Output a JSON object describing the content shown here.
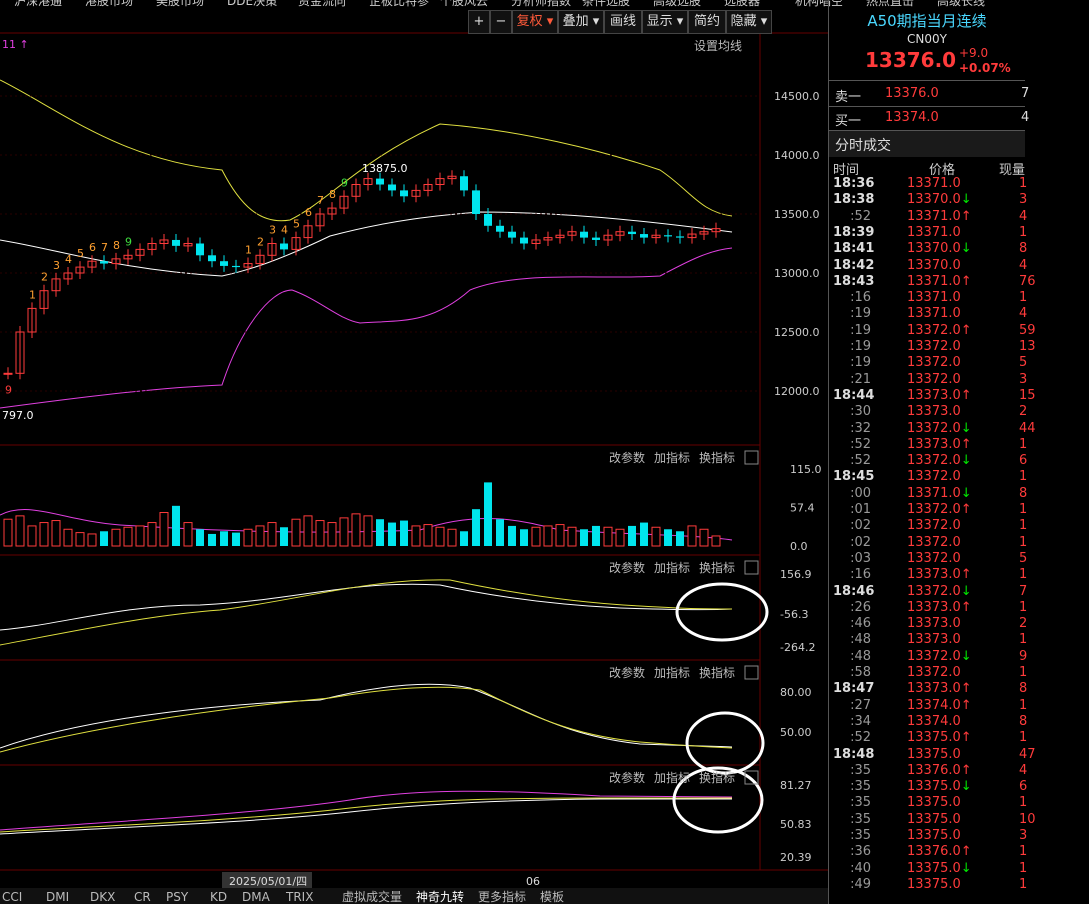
{
  "top_menu": [
    "沪深港通",
    "港股市场",
    "美股市场",
    "DDE决策",
    "资金流向",
    "企板比特参",
    "个股风云",
    "分析师指数",
    "条件选股",
    "高级选股",
    "选股器",
    "机构唱空",
    "热点直击",
    "高级长线"
  ],
  "toolbar": [
    "+",
    "−",
    "复权",
    "叠加",
    "画线",
    "显示",
    "简约",
    "隐藏"
  ],
  "chart": {
    "indicator_hint": "11 ↑",
    "ma_setting": "设置均线",
    "price_ticks": [
      {
        "value": 14500,
        "label": "14500.0"
      },
      {
        "value": 14000,
        "label": "14000.0"
      },
      {
        "value": 13500,
        "label": "13500.0"
      },
      {
        "value": 13000,
        "label": "13000.0"
      },
      {
        "value": 12500,
        "label": "12500.0"
      },
      {
        "value": 12000,
        "label": "12000.0"
      }
    ],
    "high_label": "13875.0",
    "low_label": "797.0",
    "close": [
      12150,
      12500,
      12700,
      12850,
      12950,
      13000,
      13050,
      13100,
      13080,
      13120,
      13150,
      13200,
      13250,
      13280,
      13230,
      13250,
      13150,
      13100,
      13060,
      13050,
      13080,
      13150,
      13250,
      13200,
      13300,
      13400,
      13500,
      13550,
      13650,
      13750,
      13800,
      13750,
      13700,
      13650,
      13700,
      13750,
      13800,
      13820,
      13700,
      13500,
      13400,
      13350,
      13300,
      13250,
      13280,
      13300,
      13320,
      13350,
      13300,
      13280,
      13320,
      13350,
      13330,
      13300,
      13320,
      13310,
      13300,
      13330,
      13350,
      13376
    ],
    "td_count": [
      "9",
      null,
      "1",
      "2",
      "3",
      "4",
      "5",
      "6",
      "7",
      "8",
      "9",
      null,
      null,
      null,
      null,
      null,
      null,
      null,
      null,
      null,
      "1",
      "2",
      "3",
      "4",
      "5",
      "6",
      "7",
      "8",
      "9",
      null,
      null,
      null,
      null,
      null,
      null,
      null,
      null,
      null,
      null,
      null,
      null,
      null,
      null,
      null,
      null,
      null,
      null,
      null,
      null,
      null,
      null,
      null,
      null,
      null,
      null,
      null,
      null,
      null,
      null,
      null
    ],
    "volume": {
      "ticks": [
        {
          "value": 115,
          "label": "115.0"
        },
        57.4,
        {
          "value": 0,
          "label": "0.0"
        }
      ],
      "values": [
        40,
        45,
        30,
        35,
        38,
        25,
        20,
        18,
        22,
        25,
        28,
        30,
        35,
        50,
        60,
        35,
        25,
        18,
        22,
        20,
        25,
        30,
        35,
        28,
        40,
        45,
        38,
        35,
        42,
        48,
        45,
        40,
        35,
        38,
        30,
        32,
        28,
        25,
        22,
        55,
        95,
        40,
        30,
        25,
        28,
        30,
        32,
        28,
        25,
        30,
        28,
        25,
        30,
        35,
        28,
        25,
        22,
        30,
        25,
        15
      ]
    },
    "panel_actions": [
      "改参数",
      "加指标",
      "换指标"
    ],
    "panels": [
      {
        "ticks": [
          156.9,
          -56.3,
          -264.2
        ]
      },
      {
        "ticks": [
          {
            "value": 80,
            "label": "80.00"
          },
          {
            "value": 50,
            "label": "50.00"
          }
        ]
      },
      {
        "ticks": [
          81.27,
          50.83,
          20.39
        ]
      }
    ],
    "date_label": "2025/05/01/四",
    "date_label2": "06",
    "tabs": [
      "CCI",
      "DMI",
      "DKX",
      "CR",
      "PSY",
      "KD",
      "DMA",
      "TRIX",
      "虚拟成交量",
      "神奇九转",
      "更多指标",
      "模板"
    ]
  },
  "quote": {
    "name": "A50期指当月连续",
    "code": "CN00Y",
    "price": "13376.0",
    "change": "+9.0",
    "pct": "+0.07%",
    "sell_label": "卖一",
    "sell_price": "13376.0",
    "sell_vol": "7",
    "buy_label": "买一",
    "buy_price": "13374.0",
    "buy_vol": "4",
    "trades_title": "分时成交",
    "col_time": "时间",
    "col_price": "价格",
    "col_vol": "现量"
  },
  "trades": [
    {
      "time": "18:36",
      "price": "13371.0",
      "dir": "",
      "vol": "1"
    },
    {
      "time": "18:38",
      "price": "13370.0",
      "dir": "down",
      "vol": "3"
    },
    {
      "time": ":52",
      "price": "13371.0",
      "dir": "up",
      "vol": "4"
    },
    {
      "time": "18:39",
      "price": "13371.0",
      "dir": "",
      "vol": "1"
    },
    {
      "time": "18:41",
      "price": "13370.0",
      "dir": "down",
      "vol": "8"
    },
    {
      "time": "18:42",
      "price": "13370.0",
      "dir": "",
      "vol": "4"
    },
    {
      "time": "18:43",
      "price": "13371.0",
      "dir": "up",
      "vol": "76"
    },
    {
      "time": ":16",
      "price": "13371.0",
      "dir": "",
      "vol": "1"
    },
    {
      "time": ":19",
      "price": "13371.0",
      "dir": "",
      "vol": "4"
    },
    {
      "time": ":19",
      "price": "13372.0",
      "dir": "up",
      "vol": "59"
    },
    {
      "time": ":19",
      "price": "13372.0",
      "dir": "",
      "vol": "13"
    },
    {
      "time": ":19",
      "price": "13372.0",
      "dir": "",
      "vol": "5"
    },
    {
      "time": ":21",
      "price": "13372.0",
      "dir": "",
      "vol": "3"
    },
    {
      "time": "18:44",
      "price": "13373.0",
      "dir": "up",
      "vol": "15"
    },
    {
      "time": ":30",
      "price": "13373.0",
      "dir": "",
      "vol": "2"
    },
    {
      "time": ":32",
      "price": "13372.0",
      "dir": "down",
      "vol": "44"
    },
    {
      "time": ":52",
      "price": "13373.0",
      "dir": "up",
      "vol": "1"
    },
    {
      "time": ":52",
      "price": "13372.0",
      "dir": "down",
      "vol": "6"
    },
    {
      "time": "18:45",
      "price": "13372.0",
      "dir": "",
      "vol": "1"
    },
    {
      "time": ":00",
      "price": "13371.0",
      "dir": "down",
      "vol": "8"
    },
    {
      "time": ":01",
      "price": "13372.0",
      "dir": "up",
      "vol": "1"
    },
    {
      "time": ":02",
      "price": "13372.0",
      "dir": "",
      "vol": "1"
    },
    {
      "time": ":02",
      "price": "13372.0",
      "dir": "",
      "vol": "1"
    },
    {
      "time": ":03",
      "price": "13372.0",
      "dir": "",
      "vol": "5"
    },
    {
      "time": ":16",
      "price": "13373.0",
      "dir": "up",
      "vol": "1"
    },
    {
      "time": "18:46",
      "price": "13372.0",
      "dir": "down",
      "vol": "7"
    },
    {
      "time": ":26",
      "price": "13373.0",
      "dir": "up",
      "vol": "1"
    },
    {
      "time": ":46",
      "price": "13373.0",
      "dir": "",
      "vol": "2"
    },
    {
      "time": ":48",
      "price": "13373.0",
      "dir": "",
      "vol": "1"
    },
    {
      "time": ":48",
      "price": "13372.0",
      "dir": "down",
      "vol": "9"
    },
    {
      "time": ":58",
      "price": "13372.0",
      "dir": "",
      "vol": "1"
    },
    {
      "time": "18:47",
      "price": "13373.0",
      "dir": "up",
      "vol": "8"
    },
    {
      "time": ":27",
      "price": "13374.0",
      "dir": "up",
      "vol": "1"
    },
    {
      "time": ":34",
      "price": "13374.0",
      "dir": "",
      "vol": "8"
    },
    {
      "time": ":52",
      "price": "13375.0",
      "dir": "up",
      "vol": "1"
    },
    {
      "time": "18:48",
      "price": "13375.0",
      "dir": "",
      "vol": "47"
    },
    {
      "time": ":35",
      "price": "13376.0",
      "dir": "up",
      "vol": "4"
    },
    {
      "time": ":35",
      "price": "13375.0",
      "dir": "down",
      "vol": "6"
    },
    {
      "time": ":35",
      "price": "13375.0",
      "dir": "",
      "vol": "1"
    },
    {
      "time": ":35",
      "price": "13375.0",
      "dir": "",
      "vol": "10"
    },
    {
      "time": ":35",
      "price": "13375.0",
      "dir": "",
      "vol": "3"
    },
    {
      "time": ":36",
      "price": "13376.0",
      "dir": "up",
      "vol": "1"
    },
    {
      "time": ":40",
      "price": "13375.0",
      "dir": "down",
      "vol": "1"
    },
    {
      "time": ":49",
      "price": "13375.0",
      "dir": "",
      "vol": "1"
    }
  ]
}
